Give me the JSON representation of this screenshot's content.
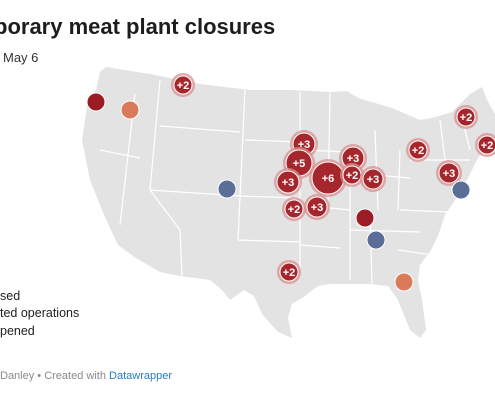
{
  "header": {
    "title": "porary meat plant closures",
    "subtitle": "May 6"
  },
  "colors": {
    "land": "#e3e3e3",
    "state_border": "#ffffff",
    "closed": "#9b1c24",
    "reduced": "#d97a5a",
    "reopened": "#5b6e97",
    "cluster_fill": "#a5262c",
    "cluster_halo": "#d98f8f"
  },
  "legend": {
    "items": [
      {
        "label": "sed",
        "status": "closed"
      },
      {
        "label": "ted operations",
        "status": "reduced"
      },
      {
        "label": "pened",
        "status": "reopened"
      }
    ]
  },
  "map": {
    "region": "Contiguous United States",
    "clusters": [
      {
        "label": "+2"
      },
      {
        "label": "+3"
      },
      {
        "label": "+5"
      },
      {
        "label": "+3"
      },
      {
        "label": "+6"
      },
      {
        "label": "+2"
      },
      {
        "label": "+3"
      },
      {
        "label": "+3"
      },
      {
        "label": "+2"
      },
      {
        "label": "+3"
      },
      {
        "label": "+2"
      },
      {
        "label": "+2"
      },
      {
        "label": "+2"
      },
      {
        "label": "+3"
      },
      {
        "label": "+2"
      }
    ],
    "plants": [
      {
        "status": "closed"
      },
      {
        "status": "reduced"
      },
      {
        "status": "reopened"
      },
      {
        "status": "closed"
      },
      {
        "status": "reopened"
      },
      {
        "status": "reduced"
      },
      {
        "status": "reopened"
      }
    ]
  },
  "footer": {
    "credit": "Danley • Created with ",
    "tool": "Datawrapper"
  }
}
